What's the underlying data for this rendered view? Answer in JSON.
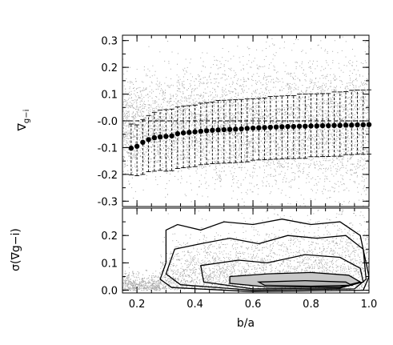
{
  "chart_data": [
    {
      "type": "scatter",
      "panel": "top",
      "xlabel": "b/a",
      "ylabel_symbol": "∇",
      "ylabel_subscript": "g−i",
      "xlim": [
        0.15,
        1.0
      ],
      "ylim": [
        -0.32,
        0.32
      ],
      "xticks": [
        0.2,
        0.4,
        0.6,
        0.8,
        1.0
      ],
      "yticks": [
        -0.3,
        -0.2,
        -0.1,
        0.0,
        0.1,
        0.2,
        0.3
      ],
      "ytick_labels": [
        "-0.3",
        "-0.2",
        "-0.1",
        "-0.0",
        "0.1",
        "0.2",
        "0.3"
      ],
      "reference_line_y": 0.0,
      "binned_medians": {
        "x": [
          0.18,
          0.2,
          0.22,
          0.24,
          0.26,
          0.28,
          0.3,
          0.32,
          0.34,
          0.36,
          0.38,
          0.4,
          0.42,
          0.44,
          0.46,
          0.48,
          0.5,
          0.52,
          0.54,
          0.56,
          0.58,
          0.6,
          0.62,
          0.64,
          0.66,
          0.68,
          0.7,
          0.72,
          0.74,
          0.76,
          0.78,
          0.8,
          0.82,
          0.84,
          0.86,
          0.88,
          0.9,
          0.92,
          0.94,
          0.96,
          0.98,
          1.0
        ],
        "y": [
          -0.102,
          -0.095,
          -0.08,
          -0.07,
          -0.063,
          -0.06,
          -0.058,
          -0.056,
          -0.048,
          -0.045,
          -0.043,
          -0.041,
          -0.039,
          -0.037,
          -0.035,
          -0.034,
          -0.033,
          -0.032,
          -0.031,
          -0.03,
          -0.028,
          -0.027,
          -0.026,
          -0.025,
          -0.024,
          -0.023,
          -0.022,
          -0.021,
          -0.021,
          -0.02,
          -0.02,
          -0.019,
          -0.019,
          -0.018,
          -0.018,
          -0.017,
          -0.017,
          -0.016,
          -0.016,
          -0.015,
          -0.015,
          -0.014
        ],
        "err_low": [
          0.1,
          0.11,
          0.12,
          0.12,
          0.125,
          0.125,
          0.13,
          0.13,
          0.13,
          0.13,
          0.13,
          0.13,
          0.125,
          0.125,
          0.125,
          0.125,
          0.125,
          0.125,
          0.125,
          0.125,
          0.125,
          0.12,
          0.12,
          0.12,
          0.12,
          0.12,
          0.12,
          0.12,
          0.12,
          0.12,
          0.12,
          0.115,
          0.115,
          0.115,
          0.115,
          0.115,
          0.115,
          0.11,
          0.11,
          0.11,
          0.11,
          0.11
        ],
        "err_high": [
          0.09,
          0.08,
          0.085,
          0.09,
          0.095,
          0.1,
          0.1,
          0.1,
          0.1,
          0.1,
          0.1,
          0.1,
          0.105,
          0.105,
          0.105,
          0.11,
          0.11,
          0.11,
          0.11,
          0.11,
          0.11,
          0.11,
          0.11,
          0.11,
          0.115,
          0.115,
          0.115,
          0.115,
          0.115,
          0.12,
          0.12,
          0.12,
          0.12,
          0.12,
          0.12,
          0.125,
          0.125,
          0.125,
          0.13,
          0.13,
          0.13,
          0.13
        ]
      }
    },
    {
      "type": "scatter",
      "panel": "bottom",
      "xlabel": "b/a",
      "ylabel": "σ(∇g−i)",
      "xlim": [
        0.15,
        1.0
      ],
      "ylim": [
        -0.01,
        0.3
      ],
      "xticks": [
        0.2,
        0.4,
        0.6,
        0.8,
        1.0
      ],
      "xtick_labels": [
        "0.2",
        "0.4",
        "0.6",
        "0.8",
        "1.0"
      ],
      "yticks": [
        0.0,
        0.1,
        0.2
      ],
      "ytick_labels": [
        "0.0",
        "0.1",
        "0.2"
      ],
      "contours": [
        {
          "level": 1,
          "points": [
            [
              0.3,
              0.22
            ],
            [
              0.34,
              0.24
            ],
            [
              0.42,
              0.22
            ],
            [
              0.5,
              0.25
            ],
            [
              0.6,
              0.24
            ],
            [
              0.7,
              0.26
            ],
            [
              0.8,
              0.24
            ],
            [
              0.9,
              0.25
            ],
            [
              0.97,
              0.2
            ],
            [
              1.0,
              0.05
            ],
            [
              0.98,
              0.0
            ],
            [
              0.6,
              -0.005
            ],
            [
              0.32,
              0.01
            ],
            [
              0.28,
              0.04
            ],
            [
              0.3,
              0.1
            ]
          ]
        },
        {
          "level": 2,
          "points": [
            [
              0.33,
              0.15
            ],
            [
              0.42,
              0.17
            ],
            [
              0.52,
              0.19
            ],
            [
              0.62,
              0.17
            ],
            [
              0.72,
              0.2
            ],
            [
              0.82,
              0.19
            ],
            [
              0.92,
              0.2
            ],
            [
              0.98,
              0.15
            ],
            [
              0.99,
              0.04
            ],
            [
              0.95,
              0.005
            ],
            [
              0.6,
              0.0
            ],
            [
              0.35,
              0.02
            ],
            [
              0.3,
              0.06
            ]
          ]
        },
        {
          "level": 3,
          "points": [
            [
              0.42,
              0.09
            ],
            [
              0.55,
              0.11
            ],
            [
              0.65,
              0.1
            ],
            [
              0.78,
              0.13
            ],
            [
              0.9,
              0.12
            ],
            [
              0.97,
              0.08
            ],
            [
              0.98,
              0.03
            ],
            [
              0.9,
              0.008
            ],
            [
              0.6,
              0.005
            ],
            [
              0.43,
              0.03
            ]
          ]
        },
        {
          "level": 4,
          "points": [
            [
              0.52,
              0.05
            ],
            [
              0.65,
              0.06
            ],
            [
              0.8,
              0.065
            ],
            [
              0.93,
              0.055
            ],
            [
              0.97,
              0.03
            ],
            [
              0.9,
              0.012
            ],
            [
              0.65,
              0.012
            ],
            [
              0.52,
              0.025
            ]
          ]
        },
        {
          "level": 5,
          "points": [
            [
              0.62,
              0.03
            ],
            [
              0.78,
              0.035
            ],
            [
              0.92,
              0.03
            ],
            [
              0.94,
              0.018
            ],
            [
              0.8,
              0.015
            ],
            [
              0.64,
              0.018
            ]
          ]
        }
      ]
    }
  ]
}
